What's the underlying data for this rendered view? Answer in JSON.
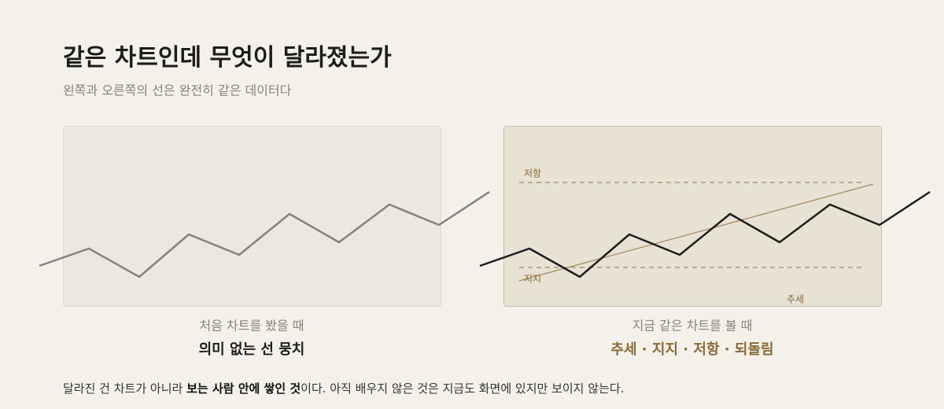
{
  "header": {
    "title": "같은 차트인데 무엇이 달라졌는가",
    "subtitle": "왼쪽과 오른쪽의 선은 완전히 같은 데이터다"
  },
  "panels": [
    {
      "caption": "처음 차트를 봤을 때",
      "headline": "의미 없는 선 뭉치"
    },
    {
      "caption": "지금 같은 차트를 볼 때",
      "headline": "추세 · 지지 · 저항 · 되돌림",
      "labels": {
        "resistance": "저항",
        "support": "지지",
        "trend": "추세"
      }
    }
  ],
  "footer": {
    "parts": [
      "달라진 건 차트가 아니라 ",
      "보는 사람 안에 쌓인 것",
      "이다. 아직 배우지 않은 것은 지금도 화면에 있지만 보이지 않는다."
    ]
  }
}
